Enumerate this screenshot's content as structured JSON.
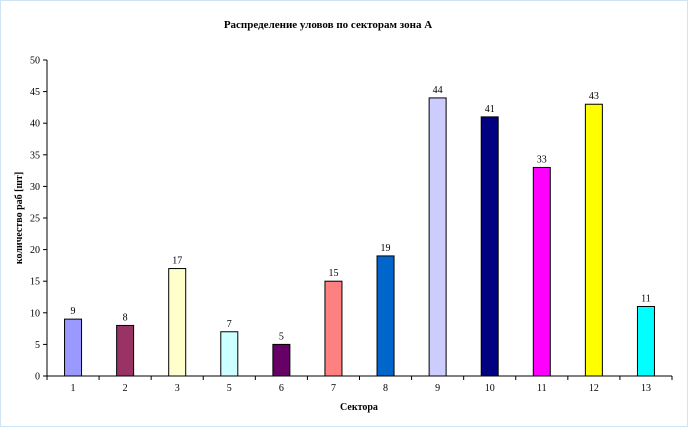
{
  "chart_data": {
    "type": "bar",
    "title": "Распределение уловов по секторам зона А",
    "xlabel": "Сектора",
    "ylabel": "количество раб [шт]",
    "categories": [
      "1",
      "2",
      "3",
      "5",
      "6",
      "7",
      "8",
      "9",
      "10",
      "11",
      "12",
      "13"
    ],
    "values": [
      9,
      8,
      17,
      7,
      5,
      15,
      19,
      44,
      41,
      33,
      43,
      11
    ],
    "colors": [
      "#9999ff",
      "#993366",
      "#ffffcc",
      "#ccffff",
      "#660066",
      "#ff8080",
      "#0066cc",
      "#ccccff",
      "#000080",
      "#ff00ff",
      "#ffff00",
      "#00ffff"
    ],
    "ylim": [
      0,
      50
    ],
    "yticks": [
      0,
      5,
      10,
      15,
      20,
      25,
      30,
      35,
      40,
      45,
      50
    ],
    "grid": false,
    "legend": "none"
  }
}
